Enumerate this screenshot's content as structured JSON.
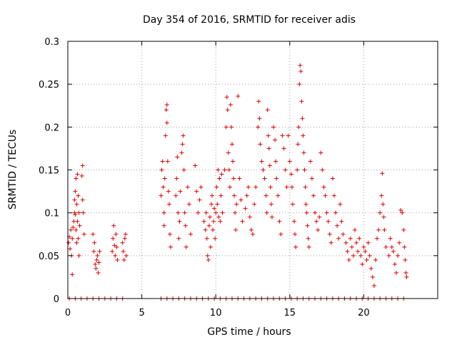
{
  "chart_data": {
    "type": "scatter",
    "title": "Day 354 of 2016, SRMTID for receiver adis",
    "xlabel": "GPS time / hours",
    "ylabel": "SRMTID / TECUs",
    "xlim": [
      0,
      25
    ],
    "ylim": [
      0,
      0.3
    ],
    "x_ticks": [
      0,
      5,
      10,
      15,
      20
    ],
    "x_tick_labels": [
      "0",
      "5",
      "10",
      "15",
      "20"
    ],
    "y_ticks": [
      0,
      0.05,
      0.1,
      0.15,
      0.2,
      0.25,
      0.3
    ],
    "y_tick_labels": [
      "0",
      "0.05",
      "0.1",
      "0.15",
      "0.2",
      "0.25",
      "0.3"
    ],
    "grid": true,
    "marker": "+",
    "series": [
      {
        "name": "SRMTID",
        "color": "#e00000",
        "points": [
          [
            0.05,
            0.065
          ],
          [
            0.1,
            0.072
          ],
          [
            0.15,
            0.058
          ],
          [
            0.2,
            0.08
          ],
          [
            0.25,
            0.05
          ],
          [
            0.3,
            0.07
          ],
          [
            0.3,
            0.028
          ],
          [
            0.35,
            0.083
          ],
          [
            0.4,
            0.09
          ],
          [
            0.45,
            0.1
          ],
          [
            0.45,
            0.115
          ],
          [
            0.5,
            0.125
          ],
          [
            0.5,
            0.098
          ],
          [
            0.55,
            0.14
          ],
          [
            0.55,
            0.08
          ],
          [
            0.6,
            0.11
          ],
          [
            0.6,
            0.065
          ],
          [
            0.65,
            0.09
          ],
          [
            0.65,
            0.145
          ],
          [
            0.7,
            0.12
          ],
          [
            0.7,
            0.07
          ],
          [
            0.75,
            0.05
          ],
          [
            0.75,
            0.1
          ],
          [
            0.8,
            0.085
          ],
          [
            0.95,
            0.143
          ],
          [
            1.0,
            0.155
          ],
          [
            1.0,
            0.115
          ],
          [
            1.05,
            0.1
          ],
          [
            1.1,
            0.075
          ],
          [
            1.7,
            0.075
          ],
          [
            1.75,
            0.055
          ],
          [
            1.8,
            0.065
          ],
          [
            1.85,
            0.04
          ],
          [
            1.9,
            0.035
          ],
          [
            1.95,
            0.045
          ],
          [
            2.0,
            0.05
          ],
          [
            2.05,
            0.03
          ],
          [
            2.1,
            0.042
          ],
          [
            2.15,
            0.055
          ],
          [
            3.0,
            0.055
          ],
          [
            3.05,
            0.07
          ],
          [
            3.1,
            0.085
          ],
          [
            3.15,
            0.062
          ],
          [
            3.2,
            0.05
          ],
          [
            3.25,
            0.075
          ],
          [
            3.3,
            0.06
          ],
          [
            3.35,
            0.045
          ],
          [
            3.7,
            0.065
          ],
          [
            3.75,
            0.055
          ],
          [
            3.8,
            0.045
          ],
          [
            3.85,
            0.07
          ],
          [
            3.9,
            0.075
          ],
          [
            3.95,
            0.05
          ],
          [
            6.3,
            0.12
          ],
          [
            6.35,
            0.15
          ],
          [
            6.4,
            0.16
          ],
          [
            6.45,
            0.13
          ],
          [
            6.5,
            0.1
          ],
          [
            6.5,
            0.085
          ],
          [
            6.55,
            0.14
          ],
          [
            6.6,
            0.19
          ],
          [
            6.65,
            0.22
          ],
          [
            6.7,
            0.226
          ],
          [
            6.7,
            0.205
          ],
          [
            6.75,
            0.16
          ],
          [
            6.8,
            0.125
          ],
          [
            6.85,
            0.11
          ],
          [
            6.9,
            0.075
          ],
          [
            6.95,
            0.06
          ],
          [
            7.3,
            0.12
          ],
          [
            7.35,
            0.14
          ],
          [
            7.4,
            0.165
          ],
          [
            7.45,
            0.1
          ],
          [
            7.5,
            0.07
          ],
          [
            7.55,
            0.09
          ],
          [
            7.6,
            0.125
          ],
          [
            7.7,
            0.17
          ],
          [
            7.75,
            0.18
          ],
          [
            7.8,
            0.19
          ],
          [
            7.85,
            0.15
          ],
          [
            7.9,
            0.1
          ],
          [
            7.95,
            0.085
          ],
          [
            8.0,
            0.06
          ],
          [
            8.1,
            0.13
          ],
          [
            8.2,
            0.11
          ],
          [
            8.3,
            0.075
          ],
          [
            8.6,
            0.155
          ],
          [
            8.7,
            0.125
          ],
          [
            8.8,
            0.1
          ],
          [
            8.9,
            0.115
          ],
          [
            9.0,
            0.13
          ],
          [
            9.2,
            0.09
          ],
          [
            9.3,
            0.08
          ],
          [
            9.35,
            0.1
          ],
          [
            9.4,
            0.07
          ],
          [
            9.45,
            0.05
          ],
          [
            9.5,
            0.045
          ],
          [
            9.55,
            0.085
          ],
          [
            9.6,
            0.095
          ],
          [
            9.65,
            0.06
          ],
          [
            9.7,
            0.11
          ],
          [
            9.75,
            0.12
          ],
          [
            9.8,
            0.08
          ],
          [
            9.85,
            0.09
          ],
          [
            9.9,
            0.105
          ],
          [
            9.95,
            0.07
          ],
          [
            10.0,
            0.1
          ],
          [
            10.05,
            0.13
          ],
          [
            10.1,
            0.11
          ],
          [
            10.15,
            0.15
          ],
          [
            10.2,
            0.095
          ],
          [
            10.25,
            0.14
          ],
          [
            10.3,
            0.09
          ],
          [
            10.35,
            0.12
          ],
          [
            10.4,
            0.145
          ],
          [
            10.45,
            0.1
          ],
          [
            10.6,
            0.15
          ],
          [
            10.7,
            0.2
          ],
          [
            10.75,
            0.235
          ],
          [
            10.8,
            0.22
          ],
          [
            10.85,
            0.17
          ],
          [
            10.9,
            0.15
          ],
          [
            10.95,
            0.13
          ],
          [
            11.0,
            0.226
          ],
          [
            11.05,
            0.2
          ],
          [
            11.1,
            0.18
          ],
          [
            11.15,
            0.16
          ],
          [
            11.2,
            0.14
          ],
          [
            11.25,
            0.12
          ],
          [
            11.3,
            0.1
          ],
          [
            11.35,
            0.08
          ],
          [
            11.4,
            0.11
          ],
          [
            11.5,
            0.236
          ],
          [
            11.6,
            0.14
          ],
          [
            11.7,
            0.115
          ],
          [
            11.8,
            0.09
          ],
          [
            12.0,
            0.105
          ],
          [
            12.1,
            0.12
          ],
          [
            12.2,
            0.13
          ],
          [
            12.3,
            0.095
          ],
          [
            12.4,
            0.08
          ],
          [
            12.5,
            0.075
          ],
          [
            12.6,
            0.11
          ],
          [
            12.7,
            0.13
          ],
          [
            12.85,
            0.2
          ],
          [
            12.9,
            0.23
          ],
          [
            12.95,
            0.21
          ],
          [
            13.0,
            0.18
          ],
          [
            13.1,
            0.16
          ],
          [
            13.2,
            0.15
          ],
          [
            13.3,
            0.14
          ],
          [
            13.4,
            0.12
          ],
          [
            13.45,
            0.1
          ],
          [
            13.5,
            0.22
          ],
          [
            13.55,
            0.19
          ],
          [
            13.6,
            0.175
          ],
          [
            13.65,
            0.155
          ],
          [
            13.7,
            0.13
          ],
          [
            13.75,
            0.11
          ],
          [
            13.8,
            0.095
          ],
          [
            13.9,
            0.2
          ],
          [
            14.0,
            0.185
          ],
          [
            14.05,
            0.16
          ],
          [
            14.1,
            0.14
          ],
          [
            14.2,
            0.12
          ],
          [
            14.3,
            0.09
          ],
          [
            14.4,
            0.075
          ],
          [
            14.5,
            0.19
          ],
          [
            14.6,
            0.175
          ],
          [
            14.7,
            0.15
          ],
          [
            14.8,
            0.13
          ],
          [
            14.9,
            0.19
          ],
          [
            15.0,
            0.16
          ],
          [
            15.1,
            0.145
          ],
          [
            15.15,
            0.13
          ],
          [
            15.2,
            0.11
          ],
          [
            15.3,
            0.09
          ],
          [
            15.35,
            0.075
          ],
          [
            15.4,
            0.06
          ],
          [
            15.5,
            0.15
          ],
          [
            15.55,
            0.18
          ],
          [
            15.6,
            0.2
          ],
          [
            15.65,
            0.25
          ],
          [
            15.7,
            0.272
          ],
          [
            15.75,
            0.265
          ],
          [
            15.8,
            0.23
          ],
          [
            15.85,
            0.21
          ],
          [
            15.9,
            0.19
          ],
          [
            15.95,
            0.17
          ],
          [
            16.0,
            0.15
          ],
          [
            16.05,
            0.13
          ],
          [
            16.1,
            0.11
          ],
          [
            16.15,
            0.1
          ],
          [
            16.2,
            0.085
          ],
          [
            16.25,
            0.07
          ],
          [
            16.3,
            0.06
          ],
          [
            16.4,
            0.16
          ],
          [
            16.5,
            0.14
          ],
          [
            16.6,
            0.12
          ],
          [
            16.7,
            0.1
          ],
          [
            16.8,
            0.09
          ],
          [
            16.9,
            0.08
          ],
          [
            17.0,
            0.095
          ],
          [
            17.1,
            0.17
          ],
          [
            17.2,
            0.15
          ],
          [
            17.3,
            0.13
          ],
          [
            17.4,
            0.12
          ],
          [
            17.5,
            0.1
          ],
          [
            17.6,
            0.09
          ],
          [
            17.7,
            0.075
          ],
          [
            17.8,
            0.065
          ],
          [
            17.9,
            0.14
          ],
          [
            18.0,
            0.12
          ],
          [
            18.1,
            0.1
          ],
          [
            18.2,
            0.085
          ],
          [
            18.3,
            0.07
          ],
          [
            18.4,
            0.11
          ],
          [
            18.5,
            0.09
          ],
          [
            18.6,
            0.075
          ],
          [
            18.8,
            0.065
          ],
          [
            18.9,
            0.055
          ],
          [
            19.0,
            0.045
          ],
          [
            19.1,
            0.07
          ],
          [
            19.2,
            0.06
          ],
          [
            19.3,
            0.05
          ],
          [
            19.4,
            0.08
          ],
          [
            19.5,
            0.065
          ],
          [
            19.6,
            0.055
          ],
          [
            19.7,
            0.07
          ],
          [
            19.8,
            0.05
          ],
          [
            19.9,
            0.04
          ],
          [
            20.0,
            0.06
          ],
          [
            20.1,
            0.055
          ],
          [
            20.2,
            0.045
          ],
          [
            20.3,
            0.065
          ],
          [
            20.4,
            0.05
          ],
          [
            20.5,
            0.035
          ],
          [
            20.6,
            0.025
          ],
          [
            20.7,
            0.015
          ],
          [
            20.8,
            0.045
          ],
          [
            20.9,
            0.07
          ],
          [
            21.0,
            0.08
          ],
          [
            21.1,
            0.1
          ],
          [
            21.2,
            0.12
          ],
          [
            21.25,
            0.146
          ],
          [
            21.3,
            0.11
          ],
          [
            21.35,
            0.095
          ],
          [
            21.4,
            0.08
          ],
          [
            21.5,
            0.06
          ],
          [
            21.7,
            0.05
          ],
          [
            21.8,
            0.07
          ],
          [
            21.9,
            0.06
          ],
          [
            22.0,
            0.055
          ],
          [
            22.1,
            0.04
          ],
          [
            22.2,
            0.03
          ],
          [
            22.3,
            0.05
          ],
          [
            22.4,
            0.065
          ],
          [
            22.5,
            0.103
          ],
          [
            22.6,
            0.1
          ],
          [
            22.7,
            0.08
          ],
          [
            22.75,
            0.06
          ],
          [
            22.8,
            0.045
          ],
          [
            22.85,
            0.03
          ],
          [
            22.9,
            0.025
          ],
          [
            0.1,
            0
          ],
          [
            0.5,
            0
          ],
          [
            0.9,
            0
          ],
          [
            1.3,
            0
          ],
          [
            1.7,
            0
          ],
          [
            2.1,
            0
          ],
          [
            2.5,
            0
          ],
          [
            2.9,
            0
          ],
          [
            3.3,
            0
          ],
          [
            3.7,
            0
          ],
          [
            6.3,
            0
          ],
          [
            6.7,
            0
          ],
          [
            7.1,
            0
          ],
          [
            7.5,
            0
          ],
          [
            7.9,
            0
          ],
          [
            8.3,
            0
          ],
          [
            8.7,
            0
          ],
          [
            9.1,
            0
          ],
          [
            9.5,
            0
          ],
          [
            9.9,
            0
          ],
          [
            10.3,
            0
          ],
          [
            10.7,
            0
          ],
          [
            11.1,
            0
          ],
          [
            11.5,
            0
          ],
          [
            11.9,
            0
          ],
          [
            12.3,
            0
          ],
          [
            12.7,
            0
          ],
          [
            13.1,
            0
          ],
          [
            13.5,
            0
          ],
          [
            13.9,
            0
          ],
          [
            14.3,
            0
          ],
          [
            14.7,
            0
          ],
          [
            15.1,
            0
          ],
          [
            15.5,
            0
          ],
          [
            15.9,
            0
          ],
          [
            16.3,
            0
          ],
          [
            16.7,
            0
          ],
          [
            17.1,
            0
          ],
          [
            17.5,
            0
          ],
          [
            17.9,
            0
          ],
          [
            18.3,
            0
          ],
          [
            18.7,
            0
          ],
          [
            19.1,
            0
          ],
          [
            19.5,
            0
          ],
          [
            19.9,
            0
          ],
          [
            20.3,
            0
          ],
          [
            20.7,
            0
          ],
          [
            21.1,
            0
          ],
          [
            21.5,
            0
          ],
          [
            21.9,
            0
          ],
          [
            22.3,
            0
          ],
          [
            22.7,
            0
          ]
        ]
      }
    ]
  }
}
